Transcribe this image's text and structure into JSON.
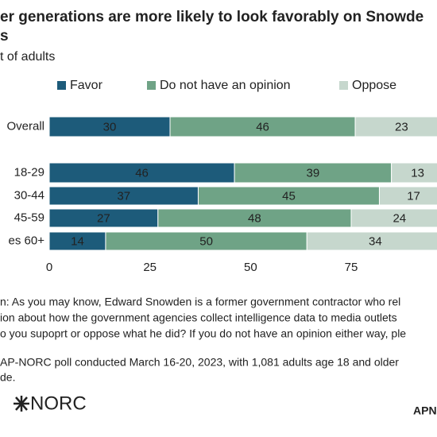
{
  "chart_data": {
    "type": "stacked_bar_horizontal",
    "title_lines": [
      "er generations are more likely to look favorably on Snowde",
      "s"
    ],
    "subtitle": "t of adults",
    "categories": [
      "Overall",
      "18-29",
      "30-44",
      "45-59",
      "es 60+"
    ],
    "series": [
      {
        "name": "Favor",
        "color": "#1d5b7a",
        "values": [
          30,
          46,
          37,
          27,
          14
        ]
      },
      {
        "name": "Do not have an opinion",
        "color": "#6fa386",
        "values": [
          46,
          39,
          45,
          48,
          50
        ]
      },
      {
        "name": "Oppose",
        "color": "#c6d7cd",
        "values": [
          23,
          13,
          17,
          24,
          34
        ]
      }
    ],
    "xlim": [
      0,
      100
    ],
    "xticks": [
      0,
      25,
      50,
      75
    ],
    "note_lines": [
      "n: As you may know, Edward Snowden is a former government contractor who rel",
      "ion about how the government agencies collect intelligence data to media outlets",
      "o you supoprt or oppose what he did? If you do not have an opinion either way, ple"
    ],
    "source_lines": [
      "AP-NORC poll conducted March 16-20, 2023, with 1,081 adults age 18 and older",
      "de."
    ],
    "logo": "NORC",
    "footer_right": "APN"
  }
}
